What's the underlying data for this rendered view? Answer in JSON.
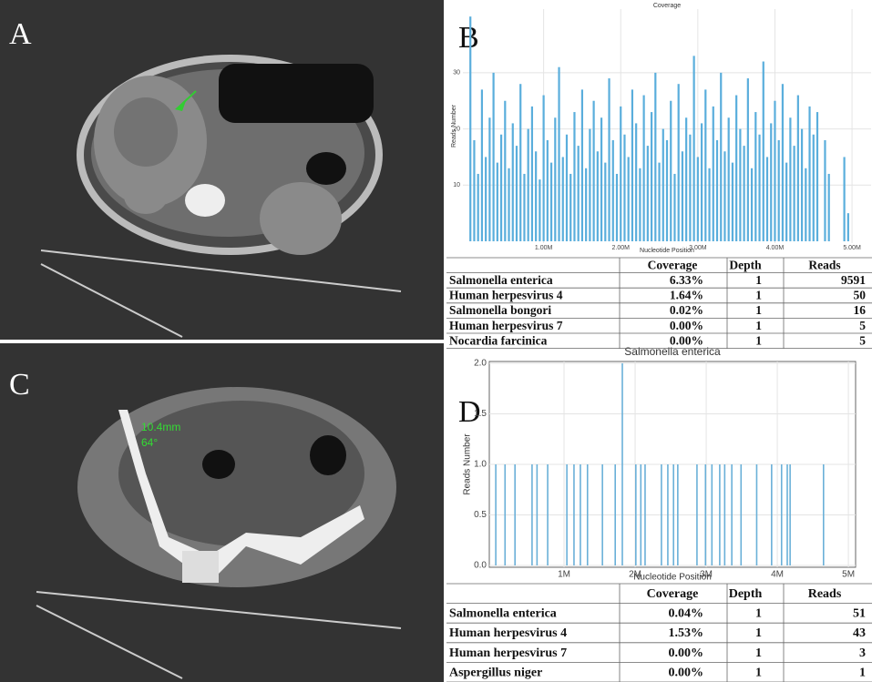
{
  "panel_labels": [
    "A",
    "B",
    "C",
    "D"
  ],
  "image_text": [
    "10.4mm",
    "64°"
  ],
  "chart_data": [
    {
      "type": "bar",
      "title": "Coverage",
      "x_label": "Nucleotide Position",
      "y_label": "Reads Number",
      "color": "#5aaedc",
      "grid": true,
      "x": [
        50000,
        100000,
        150000,
        200000,
        250000,
        300000,
        350000,
        400000,
        450000,
        500000,
        550000,
        600000,
        650000,
        700000,
        750000,
        800000,
        850000,
        900000,
        950000,
        1000000,
        1050000,
        1100000,
        1150000,
        1200000,
        1250000,
        1300000,
        1350000,
        1400000,
        1450000,
        1500000,
        1550000,
        1600000,
        1650000,
        1700000,
        1750000,
        1800000,
        1850000,
        1900000,
        1950000,
        2000000,
        2050000,
        2100000,
        2150000,
        2200000,
        2250000,
        2300000,
        2350000,
        2400000,
        2450000,
        2500000,
        2550000,
        2600000,
        2650000,
        2700000,
        2750000,
        2800000,
        2850000,
        2900000,
        2950000,
        3000000,
        3050000,
        3100000,
        3150000,
        3200000,
        3250000,
        3300000,
        3350000,
        3400000,
        3450000,
        3500000,
        3550000,
        3600000,
        3650000,
        3700000,
        3750000,
        3800000,
        3850000,
        3900000,
        3950000,
        4000000,
        4050000,
        4100000,
        4150000,
        4200000,
        4250000,
        4300000,
        4350000,
        4400000,
        4450000,
        4500000,
        4550000,
        4600000,
        4650000,
        4700000,
        4750000,
        4800000,
        4850000,
        4900000,
        4950000
      ],
      "values": [
        40,
        18,
        12,
        27,
        15,
        22,
        30,
        14,
        19,
        25,
        13,
        21,
        17,
        28,
        12,
        20,
        24,
        16,
        11,
        26,
        18,
        14,
        22,
        31,
        15,
        19,
        12,
        23,
        17,
        27,
        13,
        20,
        25,
        16,
        22,
        14,
        29,
        18,
        12,
        24,
        19,
        15,
        27,
        21,
        13,
        26,
        17,
        23,
        30,
        14,
        20,
        18,
        25,
        12,
        28,
        16,
        22,
        19,
        33,
        15,
        21,
        27,
        13,
        24,
        18,
        30,
        16,
        22,
        14,
        26,
        20,
        17,
        29,
        13,
        23,
        19,
        32,
        15,
        21,
        25,
        18,
        28,
        14,
        22,
        17,
        26,
        20,
        13,
        24,
        19,
        23,
        0,
        18,
        12,
        0,
        0,
        0,
        15,
        5
      ],
      "xlim": [
        0,
        5200000
      ],
      "ylim": [
        0,
        41
      ],
      "xticks": [
        {
          "value": 1000000,
          "label": "1.00M"
        },
        {
          "value": 2000000,
          "label": "2.00M"
        },
        {
          "value": 3000000,
          "label": "3.00M"
        },
        {
          "value": 4000000,
          "label": "4.00M"
        },
        {
          "value": 5000000,
          "label": "5.00M"
        }
      ],
      "yticks": [
        10,
        20,
        30
      ]
    },
    {
      "type": "bar",
      "title": "Salmonella enterica",
      "x_label": "Nucleotide Position",
      "y_label": "Reads Number",
      "color": "#6ab0d8",
      "grid": true,
      "x": [
        40000,
        170000,
        310000,
        550000,
        620000,
        770000,
        1040000,
        1140000,
        1230000,
        1330000,
        1540000,
        1720000,
        1820000,
        2010000,
        2080000,
        2140000,
        2370000,
        2460000,
        2540000,
        2600000,
        2870000,
        2990000,
        3080000,
        3190000,
        3260000,
        3360000,
        3490000,
        3710000,
        3920000,
        4060000,
        4140000,
        4180000,
        4650000
      ],
      "values": [
        1,
        1,
        1,
        1,
        1,
        1,
        1,
        1,
        1,
        1,
        1,
        1,
        2,
        1,
        1,
        1,
        1,
        1,
        1,
        1,
        1,
        1,
        1,
        1,
        1,
        1,
        1,
        1,
        1,
        1,
        1,
        1,
        1
      ],
      "xlim": [
        0,
        5050000
      ],
      "ylim": [
        0,
        2
      ],
      "xticks": [
        {
          "value": 1000000,
          "label": "1M"
        },
        {
          "value": 2000000,
          "label": "2M"
        },
        {
          "value": 3000000,
          "label": "3M"
        },
        {
          "value": 4000000,
          "label": "4M"
        },
        {
          "value": 5000000,
          "label": "5M"
        }
      ],
      "yticks": [
        {
          "value": 0,
          "label": "0.0"
        },
        {
          "value": 0.5,
          "label": "0.5"
        },
        {
          "value": 1,
          "label": "1.0"
        },
        {
          "value": 1.5,
          "label": "1.5"
        },
        {
          "value": 2,
          "label": "2.0"
        }
      ]
    }
  ],
  "tables": [
    {
      "header": [
        "Coverage",
        "Depth",
        "Reads"
      ],
      "rows": [
        [
          "Salmonella enterica",
          "6.33%",
          "1",
          "9591"
        ],
        [
          "Human herpesvirus 4",
          "1.64%",
          "1",
          "50"
        ],
        [
          "Salmonella bongori",
          "0.02%",
          "1",
          "16"
        ],
        [
          "Human herpesvirus 7",
          "0.00%",
          "1",
          "5"
        ],
        [
          "Nocardia farcinica",
          "0.00%",
          "1",
          "5"
        ]
      ]
    },
    {
      "header": [
        "Coverage",
        "Depth",
        "Reads"
      ],
      "rows": [
        [
          "Salmonella enterica",
          "0.04%",
          "1",
          "51"
        ],
        [
          "Human herpesvirus 4",
          "1.53%",
          "1",
          "43"
        ],
        [
          "Human herpesvirus 7",
          "0.00%",
          "1",
          "3"
        ],
        [
          "Aspergillus niger",
          "0.00%",
          "1",
          "1"
        ]
      ]
    }
  ]
}
